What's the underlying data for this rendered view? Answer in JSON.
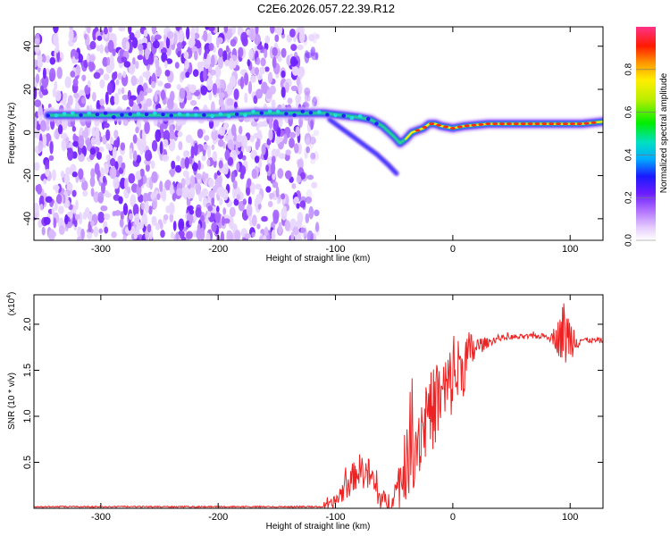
{
  "title": "C2E6.2026.057.22.39.R12",
  "chart_data": [
    {
      "type": "heatmap",
      "name": "spectrogram",
      "xlabel": "Height of straight line (km)",
      "ylabel": "Frequency (Hz)",
      "xlim": [
        -357,
        128
      ],
      "ylim": [
        -50,
        49
      ],
      "xticks": [
        -300,
        -200,
        -100,
        0,
        100
      ],
      "xtick_labels": [
        "-300",
        "-200",
        "-100",
        "0",
        "100"
      ],
      "yticks": [
        -40,
        -20,
        0,
        20,
        40
      ],
      "ytick_labels": [
        "-40",
        "-20",
        "0",
        "20",
        "40"
      ],
      "ridge": {
        "x": [
          -345,
          -280,
          -240,
          -200,
          -170,
          -150,
          -130,
          -110,
          -95,
          -80,
          -70,
          -60,
          -50,
          -45,
          -40,
          -35,
          -30,
          -25,
          -20,
          -15,
          -10,
          0,
          10,
          30,
          60,
          90,
          110,
          128
        ],
        "y": [
          8,
          8,
          8,
          8,
          9,
          9,
          9,
          9,
          8,
          7,
          6,
          3,
          -2,
          -5,
          -3,
          0,
          1,
          2,
          4,
          4,
          3,
          2,
          3,
          4,
          4,
          4,
          4,
          5
        ]
      },
      "branch": {
        "x": [
          -105,
          -95,
          -85,
          -75,
          -65,
          -55,
          -48
        ],
        "y": [
          6,
          2,
          -2,
          -6,
          -10,
          -15,
          -19
        ]
      },
      "noise_end_x": -120,
      "colorbar": {
        "label": "Normalized spectral amplitude",
        "ticks": [
          0.0,
          0.2,
          0.4,
          0.6,
          0.8
        ],
        "tick_labels": [
          "0.0",
          "0.2",
          "0.4",
          "0.6",
          "0.8"
        ],
        "range": [
          0,
          1
        ]
      }
    },
    {
      "type": "line",
      "name": "snr",
      "xlabel": "Height of straight line (km)",
      "ylabel": "SNR (10 * v/v)",
      "scale_label": "(x10",
      "scale_exp": "4",
      "scale_close": ")",
      "xlim": [
        -357,
        128
      ],
      "ylim": [
        0,
        2.32
      ],
      "xticks": [
        -300,
        -200,
        -100,
        0,
        100
      ],
      "xtick_labels": [
        "-300",
        "-200",
        "-100",
        "0",
        "100"
      ],
      "yticks": [
        0.5,
        1.0,
        1.5,
        2.0
      ],
      "ytick_labels": [
        "0.5",
        "1.0",
        "1.5",
        "2.0"
      ],
      "color": "#ee2222",
      "envelope": {
        "x": [
          -357,
          -120,
          -105,
          -100,
          -90,
          -80,
          -70,
          -65,
          -60,
          -55,
          -50,
          -45,
          -40,
          -35,
          -30,
          -25,
          -20,
          -15,
          -10,
          -5,
          0,
          5,
          10,
          15,
          20,
          25,
          30,
          35,
          40,
          50,
          60,
          70,
          80,
          90,
          95,
          100,
          110,
          128
        ],
        "y": [
          0.01,
          0.01,
          0.03,
          0.08,
          0.25,
          0.42,
          0.35,
          0.18,
          0.08,
          0.06,
          0.15,
          0.3,
          0.45,
          0.62,
          0.78,
          0.92,
          1.02,
          1.12,
          1.2,
          1.3,
          1.4,
          1.5,
          1.58,
          1.68,
          1.75,
          1.78,
          1.8,
          1.83,
          1.85,
          1.86,
          1.86,
          1.87,
          1.87,
          1.86,
          1.9,
          1.85,
          1.83,
          1.82
        ]
      },
      "jitter": {
        "x": [
          -105,
          -90,
          -70,
          -60,
          -50,
          -45,
          -30,
          -20,
          -10,
          0,
          10,
          15,
          20,
          30,
          40,
          80,
          85,
          90,
          95,
          100,
          110
        ],
        "y": [
          0.05,
          0.15,
          0.2,
          0.12,
          0.12,
          0.3,
          0.5,
          0.45,
          0.45,
          0.4,
          0.35,
          0.25,
          0.12,
          0.05,
          0.03,
          0.03,
          0.08,
          0.2,
          0.4,
          0.25,
          0.03
        ]
      }
    }
  ]
}
